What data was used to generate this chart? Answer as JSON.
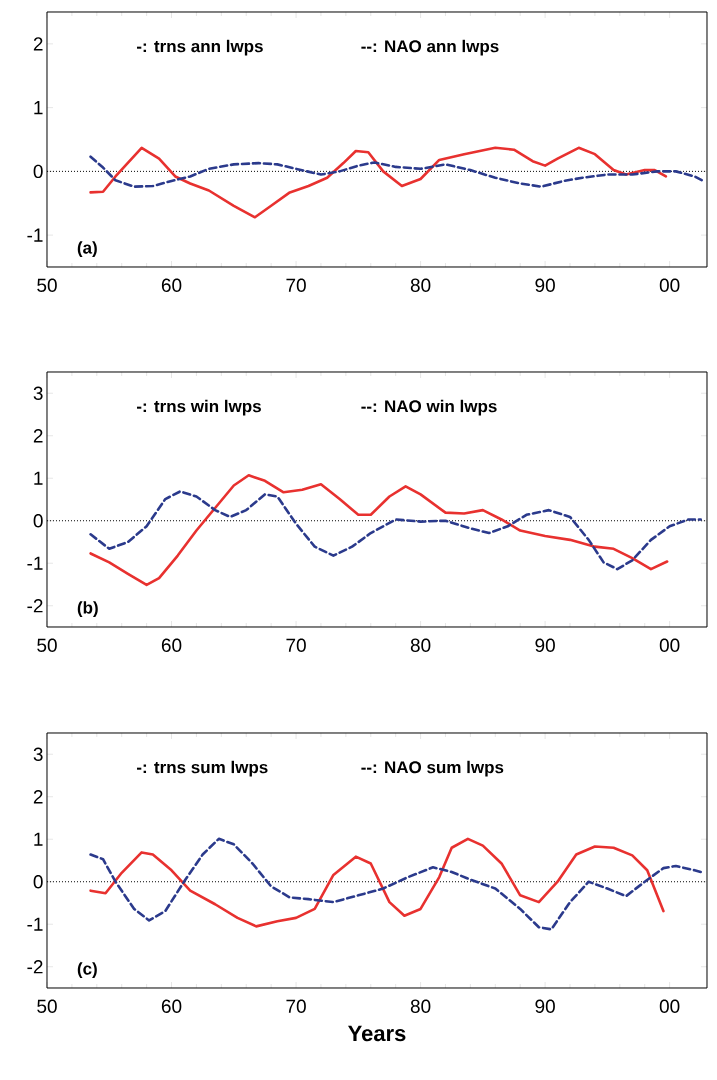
{
  "chart_data": [
    {
      "type": "line",
      "annotations": [
        "-: trns ann lwps",
        "--: NAO ann lwps",
        "(a)"
      ],
      "xlim": [
        1950,
        2003
      ],
      "ylim": [
        -1.5,
        2.5
      ],
      "xticks": [
        {
          "value": 1950,
          "label": "50"
        },
        {
          "value": 1960,
          "label": "60"
        },
        {
          "value": 1970,
          "label": "70"
        },
        {
          "value": 1980,
          "label": "80"
        },
        {
          "value": 1990,
          "label": "90"
        },
        {
          "value": 2000,
          "label": "00"
        }
      ],
      "yticks": [
        -1,
        0,
        1,
        2
      ],
      "ref_lines": [
        {
          "axis": "y",
          "value": 0,
          "line_style": "dotted",
          "color": "#000000"
        }
      ],
      "series": [
        {
          "color": "#e8312f",
          "line_style": "solid",
          "x": [
            1953.5,
            1954.5,
            1955.5,
            1957.6,
            1959,
            1960.3,
            1961.5,
            1963,
            1965,
            1966.7,
            1968,
            1969.5,
            1971,
            1972.5,
            1973.8,
            1974.8,
            1975.8,
            1977,
            1978.5,
            1980,
            1981.5,
            1983.5,
            1986,
            1987.5,
            1989,
            1990,
            1991,
            1992.7,
            1994,
            1995.5,
            1996.5,
            1998,
            1998.8,
            1999.7
          ],
          "values": [
            -0.33,
            -0.32,
            -0.08,
            0.37,
            0.2,
            -0.08,
            -0.19,
            -0.3,
            -0.54,
            -0.72,
            -0.54,
            -0.33,
            -0.23,
            -0.1,
            0.13,
            0.32,
            0.3,
            0,
            -0.23,
            -0.12,
            0.18,
            0.27,
            0.37,
            0.34,
            0.16,
            0.09,
            0.2,
            0.37,
            0.27,
            0.02,
            -0.05,
            0.02,
            0.02,
            -0.08
          ]
        },
        {
          "color": "#2b3a8c",
          "line_style": "dashed",
          "x": [
            1953.5,
            1954.5,
            1955.5,
            1957,
            1958.5,
            1960,
            1961.5,
            1963,
            1965,
            1967,
            1968.5,
            1970,
            1972,
            1973.5,
            1975,
            1976.3,
            1978,
            1980,
            1982,
            1984,
            1986,
            1988,
            1989.7,
            1991.5,
            1993,
            1995,
            1997,
            1999,
            2000.5,
            2002,
            2002.7
          ],
          "values": [
            0.23,
            0.06,
            -0.14,
            -0.24,
            -0.23,
            -0.15,
            -0.08,
            0.04,
            0.11,
            0.13,
            0.11,
            0.04,
            -0.05,
            0,
            0.09,
            0.14,
            0.07,
            0.04,
            0.11,
            0.02,
            -0.1,
            -0.19,
            -0.24,
            -0.15,
            -0.1,
            -0.05,
            -0.05,
            0,
            0,
            -0.08,
            -0.15
          ]
        }
      ]
    },
    {
      "type": "line",
      "annotations": [
        "-: trns win lwps",
        "--: NAO win lwps",
        "(b)"
      ],
      "xlim": [
        1950,
        2003
      ],
      "ylim": [
        -2.5,
        3.5
      ],
      "xticks": [
        {
          "value": 1950,
          "label": "50"
        },
        {
          "value": 1960,
          "label": "60"
        },
        {
          "value": 1970,
          "label": "70"
        },
        {
          "value": 1980,
          "label": "80"
        },
        {
          "value": 1990,
          "label": "90"
        },
        {
          "value": 2000,
          "label": "00"
        }
      ],
      "yticks": [
        -2,
        -1,
        0,
        1,
        2,
        3
      ],
      "ref_lines": [
        {
          "axis": "y",
          "value": 0,
          "line_style": "dotted",
          "color": "#000000"
        }
      ],
      "series": [
        {
          "color": "#e8312f",
          "line_style": "solid",
          "x": [
            1953.5,
            1955,
            1956.5,
            1958,
            1959,
            1960.5,
            1962,
            1963.5,
            1965,
            1966.2,
            1967.5,
            1969,
            1970.5,
            1972,
            1973.5,
            1975,
            1976,
            1977.5,
            1978.8,
            1980,
            1982,
            1983.5,
            1985,
            1986.5,
            1988,
            1990,
            1992,
            1994,
            1995.5,
            1997,
            1998.5,
            1999.8
          ],
          "values": [
            -0.77,
            -0.98,
            -1.25,
            -1.51,
            -1.35,
            -0.82,
            -0.23,
            0.3,
            0.83,
            1.07,
            0.94,
            0.67,
            0.73,
            0.86,
            0.51,
            0.14,
            0.14,
            0.57,
            0.81,
            0.62,
            0.19,
            0.17,
            0.25,
            0.03,
            -0.23,
            -0.36,
            -0.45,
            -0.61,
            -0.66,
            -0.88,
            -1.14,
            -0.96
          ]
        },
        {
          "color": "#2b3a8c",
          "line_style": "dashed",
          "x": [
            1953.5,
            1955,
            1956.5,
            1958,
            1959.5,
            1960.7,
            1962,
            1963.5,
            1964.7,
            1966,
            1967.5,
            1968.5,
            1970,
            1971.5,
            1973,
            1974.5,
            1976,
            1978,
            1980,
            1982,
            1984,
            1985.5,
            1987,
            1988.5,
            1990.3,
            1992,
            1993.5,
            1994.7,
            1995.8,
            1997,
            1998.5,
            2000,
            2001.5,
            2002.5
          ],
          "values": [
            -0.32,
            -0.66,
            -0.5,
            -0.13,
            0.51,
            0.69,
            0.57,
            0.25,
            0.09,
            0.25,
            0.62,
            0.57,
            -0.07,
            -0.61,
            -0.82,
            -0.61,
            -0.29,
            0.03,
            -0.02,
            0,
            -0.18,
            -0.29,
            -0.13,
            0.14,
            0.25,
            0.09,
            -0.45,
            -0.98,
            -1.14,
            -0.93,
            -0.45,
            -0.13,
            0.03,
            0.03
          ]
        }
      ]
    },
    {
      "type": "line",
      "annotations": [
        "-: trns sum lwps",
        "--: NAO sum lwps",
        "(c)"
      ],
      "xlabel": "Years",
      "xlim": [
        1950,
        2003
      ],
      "ylim": [
        -2.5,
        3.5
      ],
      "xticks": [
        {
          "value": 1950,
          "label": "50"
        },
        {
          "value": 1960,
          "label": "60"
        },
        {
          "value": 1970,
          "label": "70"
        },
        {
          "value": 1980,
          "label": "80"
        },
        {
          "value": 1990,
          "label": "90"
        },
        {
          "value": 2000,
          "label": "00"
        }
      ],
      "yticks": [
        -2,
        -1,
        0,
        1,
        2,
        3
      ],
      "ref_lines": [
        {
          "axis": "y",
          "value": 0,
          "line_style": "dotted",
          "color": "#000000"
        }
      ],
      "series": [
        {
          "color": "#e8312f",
          "line_style": "solid",
          "x": [
            1953.5,
            1954.7,
            1956,
            1957.6,
            1958.5,
            1960,
            1961.5,
            1963.5,
            1965.3,
            1966.8,
            1968.5,
            1970,
            1971.5,
            1973,
            1974.8,
            1976,
            1977.5,
            1978.7,
            1980,
            1981.5,
            1982.5,
            1983.8,
            1985,
            1986.5,
            1988,
            1989.5,
            1991,
            1992.5,
            1994,
            1995.5,
            1997,
            1998.2,
            1999.5
          ],
          "values": [
            -0.21,
            -0.27,
            0.21,
            0.69,
            0.64,
            0.27,
            -0.21,
            -0.53,
            -0.85,
            -1.05,
            -0.93,
            -0.85,
            -0.64,
            0.16,
            0.59,
            0.43,
            -0.48,
            -0.8,
            -0.64,
            0.11,
            0.8,
            1.01,
            0.85,
            0.43,
            -0.32,
            -0.48,
            0,
            0.64,
            0.83,
            0.8,
            0.62,
            0.27,
            -0.69
          ]
        },
        {
          "color": "#2b3a8c",
          "line_style": "dashed",
          "x": [
            1953.5,
            1954.5,
            1955.5,
            1957,
            1958.2,
            1959.5,
            1961,
            1962.5,
            1963.8,
            1965,
            1966.5,
            1968,
            1969.5,
            1971,
            1973,
            1975,
            1977,
            1979,
            1981,
            1982.5,
            1984,
            1986,
            1988,
            1989.5,
            1990.5,
            1992,
            1993.5,
            1995,
            1996.5,
            1998,
            1999.5,
            2000.5,
            2002,
            2002.5
          ],
          "values": [
            0.64,
            0.53,
            0,
            -0.64,
            -0.91,
            -0.69,
            0,
            0.64,
            1.01,
            0.88,
            0.43,
            -0.11,
            -0.37,
            -0.41,
            -0.48,
            -0.32,
            -0.16,
            0.11,
            0.34,
            0.23,
            0.05,
            -0.16,
            -0.64,
            -1.07,
            -1.12,
            -0.48,
            0,
            -0.16,
            -0.34,
            0,
            0.32,
            0.37,
            0.27,
            0.23
          ]
        }
      ]
    }
  ]
}
